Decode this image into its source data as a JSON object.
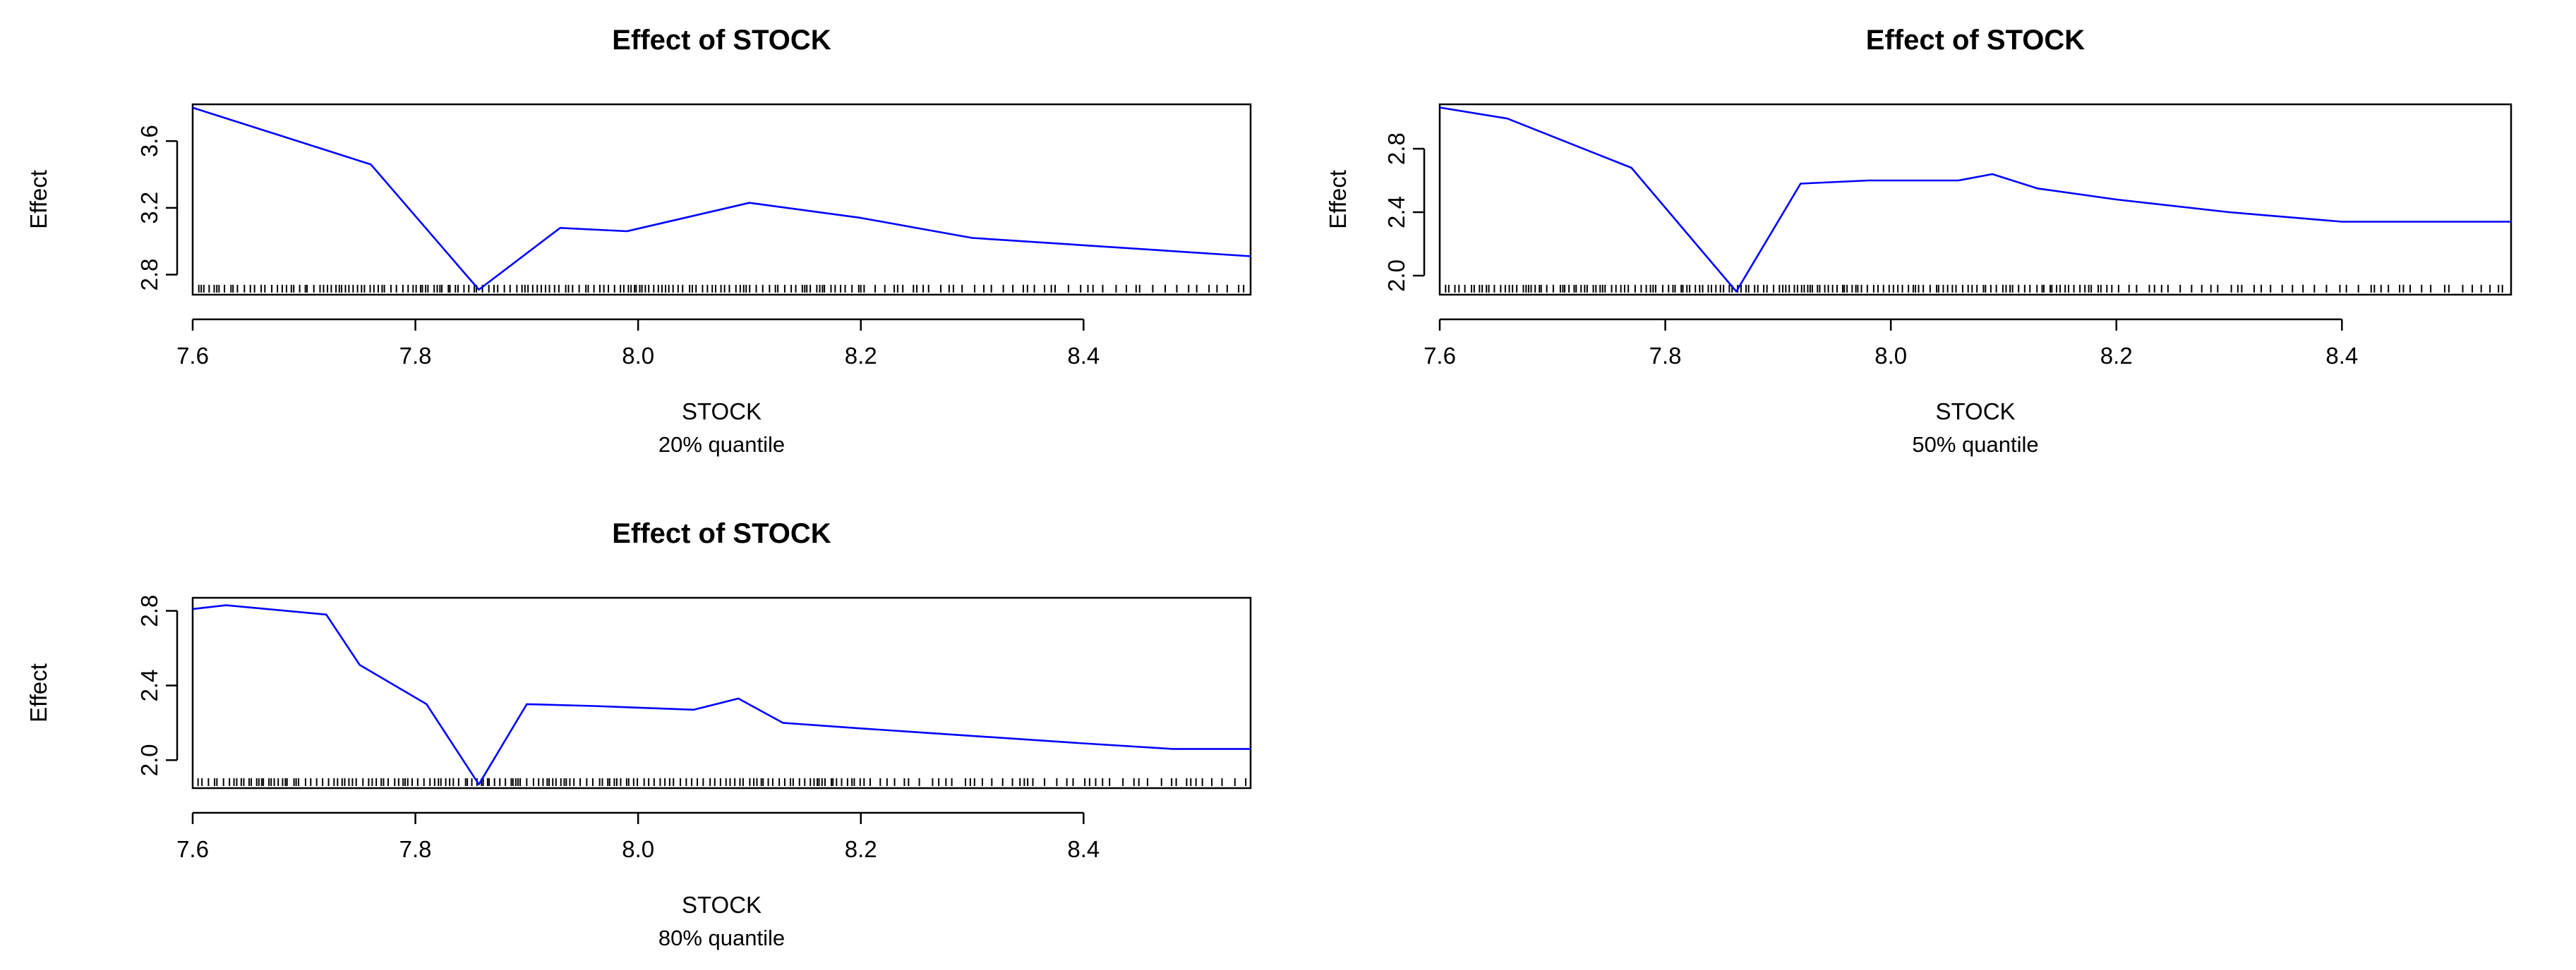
{
  "chart_data": [
    {
      "type": "line",
      "title": "Effect of  STOCK",
      "xlabel": "STOCK",
      "subtitle": "20% quantile",
      "ylabel": "Effect",
      "xlim": [
        7.6,
        8.55
      ],
      "ylim": [
        2.68,
        3.82
      ],
      "x_ticks": [
        "7.6",
        "7.8",
        "8.0",
        "8.2",
        "8.4"
      ],
      "y_ticks": [
        "2.8",
        "3.2",
        "3.6"
      ],
      "series": [
        {
          "color": "#0000ff",
          "x": [
            7.6,
            7.76,
            7.857,
            7.93,
            7.99,
            8.1,
            8.2,
            8.3,
            8.55
          ],
          "y": [
            3.8,
            3.46,
            2.71,
            3.08,
            3.06,
            3.23,
            3.14,
            3.02,
            2.91
          ]
        }
      ]
    },
    {
      "type": "line",
      "title": "Effect of  STOCK",
      "xlabel": "STOCK",
      "subtitle": "50% quantile",
      "ylabel": "Effect",
      "xlim": [
        7.6,
        8.55
      ],
      "ylim": [
        1.88,
        3.08
      ],
      "x_ticks": [
        "7.6",
        "7.8",
        "8.0",
        "8.2",
        "8.4"
      ],
      "y_ticks": [
        "2.0",
        "2.4",
        "2.8"
      ],
      "series": [
        {
          "color": "#0000ff",
          "x": [
            7.6,
            7.66,
            7.77,
            7.863,
            7.92,
            7.98,
            8.06,
            8.09,
            8.13,
            8.2,
            8.3,
            8.4,
            8.55
          ],
          "y": [
            3.06,
            2.99,
            2.68,
            1.9,
            2.58,
            2.6,
            2.6,
            2.64,
            2.55,
            2.48,
            2.4,
            2.34,
            2.34
          ]
        }
      ]
    },
    {
      "type": "line",
      "title": "Effect of  STOCK",
      "xlabel": "STOCK",
      "subtitle": "80% quantile",
      "ylabel": "Effect",
      "xlim": [
        7.6,
        8.55
      ],
      "ylim": [
        1.85,
        2.87
      ],
      "x_ticks": [
        "7.6",
        "7.8",
        "8.0",
        "8.2",
        "8.4"
      ],
      "y_ticks": [
        "2.0",
        "2.4",
        "2.8"
      ],
      "series": [
        {
          "color": "#0000ff",
          "x": [
            7.6,
            7.63,
            7.72,
            7.75,
            7.81,
            7.857,
            7.9,
            7.96,
            8.05,
            8.09,
            8.13,
            8.2,
            8.3,
            8.4,
            8.48,
            8.55
          ],
          "y": [
            2.81,
            2.83,
            2.78,
            2.51,
            2.3,
            1.87,
            2.3,
            2.29,
            2.27,
            2.33,
            2.2,
            2.17,
            2.13,
            2.09,
            2.06,
            2.06
          ]
        }
      ]
    }
  ]
}
